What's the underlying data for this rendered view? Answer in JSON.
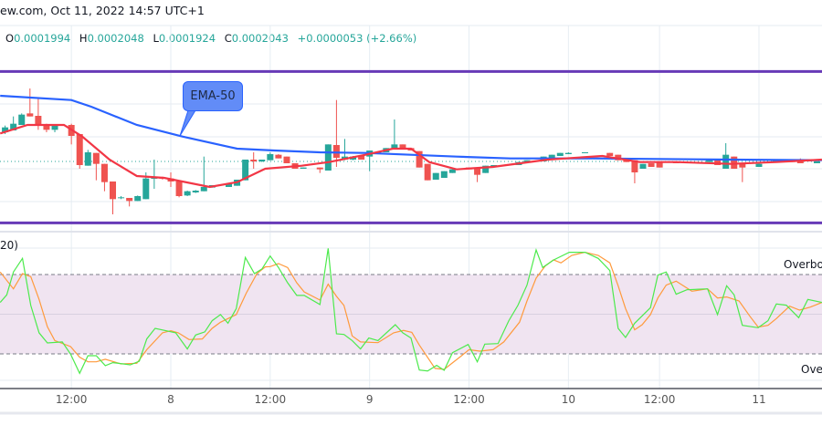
{
  "header": {
    "title": "ew.com, Oct 11, 2022 14:57 UTC+1"
  },
  "ohlc": {
    "o_label": "O",
    "o": "0.0001994",
    "h_label": "H",
    "h": "0.0002048",
    "l_label": "L",
    "l": "0.0001924",
    "c_label": "C",
    "c": "0.0002043",
    "change": "+0.0000053 (+2.66%)"
  },
  "colors": {
    "up": "#26a69a",
    "down": "#ef5350",
    "ema50": "#2962ff",
    "ema_short": "#f23645",
    "channel": "#673ab7",
    "stoch_k": "#4cea4c",
    "stoch_d": "#ff9a3c",
    "band": "#f0e4f1"
  },
  "annotation": {
    "ema_label": "EMA-50"
  },
  "stoch": {
    "title_fragment": "20)",
    "overbought_label": "Overbo",
    "oversold_label": "Ove",
    "overbought": 80,
    "oversold": 20
  },
  "x_axis": {
    "time_unit": "hours since Oct 8 00:00",
    "ticks": [
      {
        "t": -12,
        "label": "12:00"
      },
      {
        "t": 0,
        "label": "8"
      },
      {
        "t": 12,
        "label": "12:00"
      },
      {
        "t": 24,
        "label": "9"
      },
      {
        "t": 36,
        "label": "12:00"
      },
      {
        "t": 48,
        "label": "10"
      },
      {
        "t": 59,
        "label": "12:00"
      },
      {
        "t": 71,
        "label": "11"
      }
    ]
  },
  "chart_data": {
    "type": "candlestick",
    "price_unit": "1e-7",
    "last_close": 2043,
    "channel": [
      2191,
      1942
    ],
    "candles_tohlc": [
      [
        -20,
        2091,
        2102,
        2088,
        2099
      ],
      [
        -19,
        2094,
        2117,
        2094,
        2105
      ],
      [
        -18,
        2103,
        2122,
        2103,
        2120
      ],
      [
        -17,
        2122,
        2163,
        2117,
        2117
      ],
      [
        -16,
        2118,
        2147,
        2095,
        2103
      ],
      [
        -15,
        2103,
        2105,
        2091,
        2095
      ],
      [
        -14,
        2095,
        2103,
        2091,
        2102
      ],
      [
        -12,
        2103,
        2105,
        2071,
        2085
      ],
      [
        -11,
        2088,
        2088,
        2031,
        2037
      ],
      [
        -10,
        2036,
        2062,
        2036,
        2058
      ],
      [
        -9,
        2057,
        2057,
        2012,
        2039
      ],
      [
        -8,
        2039,
        2039,
        1994,
        2009
      ],
      [
        -7,
        2010,
        2010,
        1956,
        1981
      ],
      [
        -6,
        1983,
        1986,
        1981,
        1984
      ],
      [
        -5,
        1983,
        1983,
        1969,
        1978
      ],
      [
        -4,
        1978,
        1987,
        1978,
        1986
      ],
      [
        -3,
        1981,
        2025,
        1981,
        2015
      ],
      [
        -2,
        2015,
        2046,
        1998,
        2016
      ],
      [
        -1,
        2016,
        2018,
        2013,
        2015
      ],
      [
        0,
        2015,
        2025,
        2001,
        2010
      ],
      [
        1,
        2010,
        2012,
        1984,
        1986
      ],
      [
        2,
        1987,
        1995,
        1986,
        1994
      ],
      [
        3,
        1992,
        1996,
        1991,
        1995
      ],
      [
        4,
        1994,
        2051,
        1994,
        2001
      ],
      [
        5,
        2000,
        2004,
        2000,
        2004
      ],
      [
        7,
        2001,
        2007,
        2001,
        2007
      ],
      [
        8,
        2003,
        2013,
        2003,
        2013
      ],
      [
        9,
        2012,
        2046,
        2012,
        2046
      ],
      [
        10,
        2046,
        2058,
        2031,
        2043
      ],
      [
        11,
        2043,
        2046,
        2042,
        2046
      ],
      [
        12,
        2045,
        2058,
        2045,
        2055
      ],
      [
        13,
        2054,
        2055,
        2048,
        2048
      ],
      [
        14,
        2051,
        2051,
        2040,
        2040
      ],
      [
        15,
        2040,
        2040,
        2031,
        2031
      ],
      [
        16,
        2031,
        2033,
        2031,
        2033
      ],
      [
        18,
        2033,
        2033,
        2024,
        2030
      ],
      [
        19,
        2028,
        2071,
        2028,
        2071
      ],
      [
        20,
        2070,
        2144,
        2034,
        2049
      ],
      [
        21,
        2046,
        2080,
        2045,
        2051
      ],
      [
        22,
        2046,
        2052,
        2045,
        2051
      ],
      [
        23,
        2052,
        2052,
        2046,
        2046
      ],
      [
        24,
        2051,
        2061,
        2027,
        2061
      ],
      [
        25,
        2055,
        2058,
        2055,
        2058
      ],
      [
        26,
        2058,
        2065,
        2058,
        2065
      ],
      [
        27,
        2065,
        2112,
        2065,
        2071
      ],
      [
        28,
        2071,
        2071,
        2065,
        2065
      ],
      [
        29,
        2065,
        2065,
        2061,
        2061
      ],
      [
        30,
        2060,
        2060,
        2033,
        2033
      ],
      [
        31,
        2039,
        2039,
        2012,
        2012
      ],
      [
        32,
        2013,
        2024,
        2013,
        2024
      ],
      [
        33,
        2016,
        2027,
        2016,
        2027
      ],
      [
        34,
        2024,
        2030,
        2024,
        2030
      ],
      [
        35,
        2030,
        2031,
        2030,
        2031
      ],
      [
        36,
        2033,
        2033,
        2030,
        2030
      ],
      [
        37,
        2033,
        2033,
        2009,
        2021
      ],
      [
        38,
        2024,
        2036,
        2024,
        2036
      ],
      [
        39,
        2036,
        2037,
        2036,
        2037
      ],
      [
        42,
        2037,
        2042,
        2037,
        2042
      ],
      [
        43,
        2042,
        2045,
        2042,
        2045
      ],
      [
        45,
        2043,
        2051,
        2043,
        2051
      ],
      [
        46,
        2049,
        2054,
        2049,
        2054
      ],
      [
        47,
        2052,
        2057,
        2052,
        2057
      ],
      [
        48,
        2055,
        2058,
        2055,
        2057
      ],
      [
        50,
        2057,
        2058,
        2057,
        2058
      ],
      [
        53,
        2057,
        2057,
        2052,
        2052
      ],
      [
        54,
        2054,
        2054,
        2045,
        2045
      ],
      [
        55,
        2048,
        2048,
        2042,
        2042
      ],
      [
        56,
        2045,
        2045,
        2007,
        2025
      ],
      [
        57,
        2031,
        2039,
        2031,
        2039
      ],
      [
        58,
        2040,
        2040,
        2034,
        2034
      ],
      [
        59,
        2042,
        2042,
        2033,
        2033
      ],
      [
        61,
        2043,
        2043,
        2040,
        2040
      ],
      [
        65,
        2042,
        2045,
        2042,
        2045
      ],
      [
        66,
        2045,
        2045,
        2037,
        2037
      ],
      [
        67,
        2031,
        2073,
        2031,
        2054
      ],
      [
        68,
        2051,
        2051,
        2031,
        2031
      ],
      [
        69,
        2039,
        2039,
        2009,
        2033
      ],
      [
        71,
        2034,
        2039,
        2034,
        2039
      ],
      [
        73,
        2042,
        2045,
        2042,
        2045
      ],
      [
        75,
        2045,
        2046,
        2042,
        2042
      ],
      [
        76,
        2046,
        2048,
        2040,
        2040
      ],
      [
        77,
        2046,
        2046,
        2043,
        2043
      ],
      [
        78,
        2040,
        2045,
        2040,
        2043
      ]
    ],
    "ema50": [
      [
        -20.6,
        2151
      ],
      [
        -12,
        2144
      ],
      [
        -9.6,
        2133
      ],
      [
        -4.1,
        2103
      ],
      [
        1.4,
        2084
      ],
      [
        8,
        2064
      ],
      [
        12.5,
        2061
      ],
      [
        18,
        2058
      ],
      [
        23.5,
        2057
      ],
      [
        34.5,
        2051
      ],
      [
        41,
        2048
      ],
      [
        51,
        2048
      ],
      [
        67.6,
        2046
      ],
      [
        78.6,
        2045
      ]
    ],
    "ema_short": [
      [
        -20.6,
        2089
      ],
      [
        -17.3,
        2103
      ],
      [
        -12.9,
        2103
      ],
      [
        -10.7,
        2084
      ],
      [
        -7.4,
        2046
      ],
      [
        -4.1,
        2019
      ],
      [
        -0.8,
        2016
      ],
      [
        4.7,
        2001
      ],
      [
        8,
        2009
      ],
      [
        11.4,
        2031
      ],
      [
        15.8,
        2036
      ],
      [
        19.1,
        2042
      ],
      [
        23.5,
        2054
      ],
      [
        26.8,
        2064
      ],
      [
        29,
        2064
      ],
      [
        31.2,
        2042
      ],
      [
        34.5,
        2030
      ],
      [
        38.9,
        2034
      ],
      [
        45.5,
        2046
      ],
      [
        52.1,
        2052
      ],
      [
        56.6,
        2042
      ],
      [
        61,
        2042
      ],
      [
        67.6,
        2039
      ],
      [
        73.1,
        2042
      ],
      [
        78.6,
        2046
      ]
    ],
    "stoch_k": [
      [
        -20.6,
        58.9
      ],
      [
        -19.8,
        64.6
      ],
      [
        -19,
        81.9
      ],
      [
        -17.9,
        92.2
      ],
      [
        -16.9,
        56.6
      ],
      [
        -15.9,
        35.9
      ],
      [
        -14.9,
        28.3
      ],
      [
        -13.1,
        29
      ],
      [
        -12.1,
        19.8
      ],
      [
        -11,
        5.3
      ],
      [
        -10,
        18.6
      ],
      [
        -9,
        18.6
      ],
      [
        -7.9,
        11.1
      ],
      [
        -7,
        13.4
      ],
      [
        -4.9,
        11.7
      ],
      [
        -3.8,
        14.5
      ],
      [
        -2.9,
        31.3
      ],
      [
        -1.9,
        39.3
      ],
      [
        0.6,
        35.9
      ],
      [
        2,
        23.7
      ],
      [
        3,
        34.3
      ],
      [
        4.1,
        36.6
      ],
      [
        5,
        45.1
      ],
      [
        6,
        49.7
      ],
      [
        6.9,
        43.2
      ],
      [
        7.9,
        54.3
      ],
      [
        9,
        92.9
      ],
      [
        10.1,
        80.7
      ],
      [
        11,
        84.2
      ],
      [
        12,
        94
      ],
      [
        13,
        85.3
      ],
      [
        14.1,
        73.8
      ],
      [
        15.2,
        64.2
      ],
      [
        16.1,
        64.2
      ],
      [
        18,
        57.3
      ],
      [
        19,
        99.8
      ],
      [
        20,
        35.2
      ],
      [
        20.9,
        34.7
      ],
      [
        21.9,
        30.1
      ],
      [
        22.9,
        23.7
      ],
      [
        23.9,
        32
      ],
      [
        25,
        30.1
      ],
      [
        27.1,
        42.1
      ],
      [
        28,
        35.9
      ],
      [
        29,
        32
      ],
      [
        30,
        7.8
      ],
      [
        31,
        7.1
      ],
      [
        32.1,
        11.3
      ],
      [
        33,
        7.6
      ],
      [
        34,
        20.9
      ],
      [
        35.9,
        27.1
      ],
      [
        37,
        14
      ],
      [
        37.9,
        27.4
      ],
      [
        39.5,
        27.8
      ],
      [
        40.8,
        45.1
      ],
      [
        41.9,
        56.6
      ],
      [
        43,
        72
      ],
      [
        44.1,
        98.6
      ],
      [
        44.9,
        85.3
      ],
      [
        46.2,
        91
      ],
      [
        48.1,
        96.8
      ],
      [
        50,
        96.8
      ],
      [
        51.6,
        92.2
      ],
      [
        53,
        83
      ],
      [
        54,
        39.3
      ],
      [
        54.9,
        32.4
      ],
      [
        56,
        43.2
      ],
      [
        57.9,
        55
      ],
      [
        58.8,
        79.6
      ],
      [
        59.8,
        81.9
      ],
      [
        61,
        65.1
      ],
      [
        62.3,
        68.5
      ],
      [
        64.8,
        69.2
      ],
      [
        66,
        49.7
      ],
      [
        67.1,
        71.5
      ],
      [
        68,
        64.6
      ],
      [
        69,
        41.6
      ],
      [
        70.9,
        39.8
      ],
      [
        72.1,
        45.1
      ],
      [
        73.1,
        57.7
      ],
      [
        74.3,
        56.8
      ],
      [
        75.8,
        47.4
      ],
      [
        76.9,
        61.2
      ],
      [
        78.6,
        58.9
      ]
    ],
    "stoch_d": [
      [
        -20.6,
        81.9
      ],
      [
        -19,
        69.2
      ],
      [
        -17.9,
        80.7
      ],
      [
        -16.9,
        78.4
      ],
      [
        -15.9,
        61.2
      ],
      [
        -14.9,
        40.5
      ],
      [
        -14,
        30.1
      ],
      [
        -12.1,
        25.5
      ],
      [
        -11,
        17.5
      ],
      [
        -10,
        14
      ],
      [
        -9,
        14
      ],
      [
        -7.9,
        15.9
      ],
      [
        -6,
        12.4
      ],
      [
        -4.1,
        12.9
      ],
      [
        -2.9,
        23.2
      ],
      [
        -1,
        35.9
      ],
      [
        0,
        37.5
      ],
      [
        0.9,
        35.9
      ],
      [
        2.2,
        30.8
      ],
      [
        3.8,
        31.3
      ],
      [
        5,
        39.3
      ],
      [
        6,
        43.9
      ],
      [
        7.9,
        49.7
      ],
      [
        9.1,
        65.8
      ],
      [
        10.4,
        80.7
      ],
      [
        11.4,
        85.8
      ],
      [
        12,
        86
      ],
      [
        13,
        88.3
      ],
      [
        14.1,
        85.3
      ],
      [
        15.2,
        73.8
      ],
      [
        16.1,
        66.9
      ],
      [
        18,
        60.7
      ],
      [
        19,
        72.7
      ],
      [
        20,
        63.5
      ],
      [
        20.9,
        56.6
      ],
      [
        21.9,
        33.6
      ],
      [
        22.9,
        29
      ],
      [
        25,
        28.5
      ],
      [
        26.9,
        35.9
      ],
      [
        28.1,
        37.7
      ],
      [
        29.1,
        36.3
      ],
      [
        30,
        26.7
      ],
      [
        31.9,
        9
      ],
      [
        33,
        8.3
      ],
      [
        35.1,
        18.6
      ],
      [
        36,
        23.2
      ],
      [
        37.3,
        22.1
      ],
      [
        38.9,
        23.2
      ],
      [
        40.2,
        29
      ],
      [
        42.1,
        43.9
      ],
      [
        43,
        60
      ],
      [
        44.1,
        77.3
      ],
      [
        45.2,
        86.5
      ],
      [
        46.2,
        91.1
      ],
      [
        47.1,
        88.8
      ],
      [
        48.4,
        94.5
      ],
      [
        50,
        96.8
      ],
      [
        51.6,
        94.5
      ],
      [
        53,
        88.8
      ],
      [
        54,
        71.5
      ],
      [
        54.9,
        54.3
      ],
      [
        56,
        38.2
      ],
      [
        56.9,
        42.1
      ],
      [
        57.9,
        49.7
      ],
      [
        58.8,
        62.3
      ],
      [
        59.8,
        72
      ],
      [
        61,
        75
      ],
      [
        62.9,
        67.4
      ],
      [
        64.8,
        69.2
      ],
      [
        66,
        62.3
      ],
      [
        67.1,
        63
      ],
      [
        68.6,
        60
      ],
      [
        69.9,
        48.5
      ],
      [
        70.9,
        40.3
      ],
      [
        72.1,
        41.6
      ],
      [
        73.1,
        46.7
      ],
      [
        74.7,
        56.1
      ],
      [
        75.9,
        53.1
      ],
      [
        77.2,
        55.4
      ],
      [
        78.6,
        58.9
      ]
    ]
  }
}
